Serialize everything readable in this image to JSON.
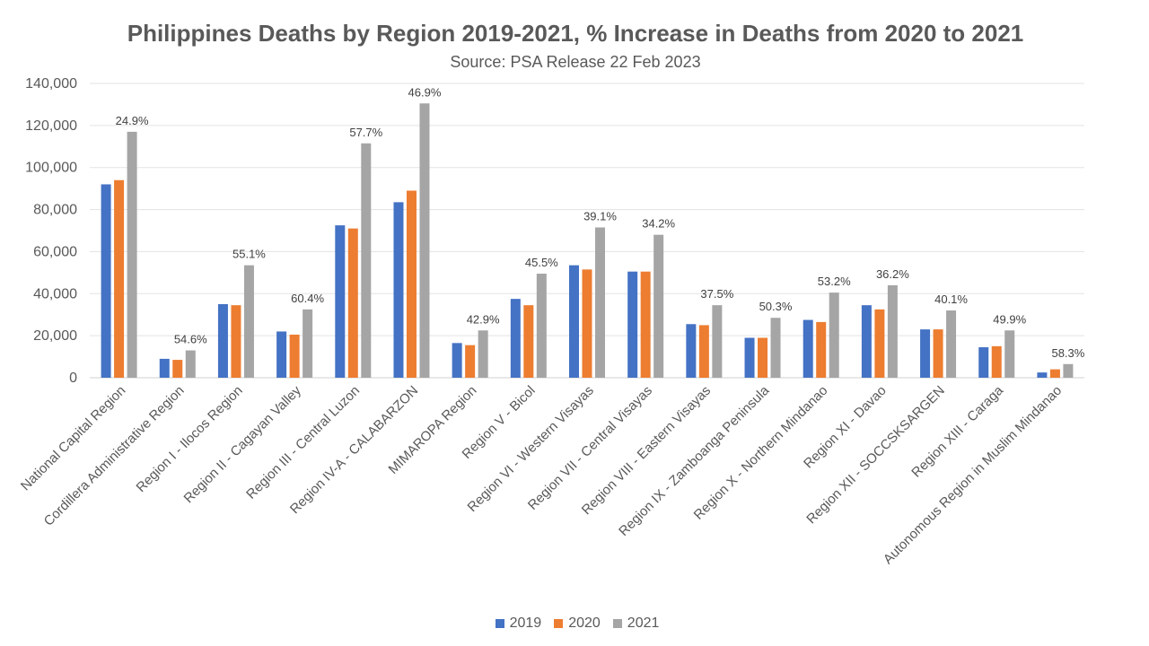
{
  "colors": {
    "2019": "#4472C4",
    "2020": "#ED7D31",
    "2021": "#A5A5A5"
  },
  "chart_data": {
    "type": "bar",
    "title": "Philippines Deaths by Region 2019-2021, % Increase in Deaths from 2020 to 2021",
    "subtitle": "Source: PSA Release 22 Feb 2023",
    "xlabel": "",
    "ylabel": "",
    "ylim": [
      0,
      140000
    ],
    "yticks": [
      0,
      20000,
      40000,
      60000,
      80000,
      100000,
      120000,
      140000
    ],
    "ytick_labels": [
      "0",
      "20,000",
      "40,000",
      "60,000",
      "80,000",
      "100,000",
      "120,000",
      "140,000"
    ],
    "grid": true,
    "legend_position": "bottom",
    "categories": [
      "National Capital Region",
      "Cordillera Administrative Region",
      "Region I - Ilocos Region",
      "Region II - Cagayan Valley",
      "Region III - Central Luzon",
      "Region IV-A - CALABARZON",
      "MIMAROPA Region",
      "Region V - Bicol",
      "Region VI - Western Visayas",
      "Region VII - Central Visayas",
      "Region VIII - Eastern Visayas",
      "Region IX - Zamboanga Peninsula",
      "Region X - Northern Mindanao",
      "Region XI - Davao",
      "Region XII - SOCCSKSARGEN",
      "Region XIII - Caraga",
      "Autonomous Region in Muslim Mindanao"
    ],
    "series": [
      {
        "name": "2019",
        "values": [
          92000,
          9000,
          35000,
          22000,
          72500,
          83500,
          16500,
          37500,
          53500,
          50500,
          25500,
          19000,
          27500,
          34500,
          23000,
          14500,
          2500
        ]
      },
      {
        "name": "2020",
        "values": [
          94000,
          8500,
          34500,
          20500,
          71000,
          89000,
          15500,
          34500,
          51500,
          50500,
          25000,
          19000,
          26500,
          32500,
          23000,
          15000,
          4000
        ]
      },
      {
        "name": "2021",
        "values": [
          117000,
          13000,
          53500,
          32500,
          111500,
          130500,
          22500,
          49500,
          71500,
          68000,
          34500,
          28500,
          40500,
          44000,
          32000,
          22500,
          6500
        ]
      }
    ],
    "data_labels": [
      "24.9%",
      "54.6%",
      "55.1%",
      "60.4%",
      "57.7%",
      "46.9%",
      "42.9%",
      "45.5%",
      "39.1%",
      "34.2%",
      "37.5%",
      "50.3%",
      "53.2%",
      "36.2%",
      "40.1%",
      "49.9%",
      "58.3%"
    ]
  }
}
